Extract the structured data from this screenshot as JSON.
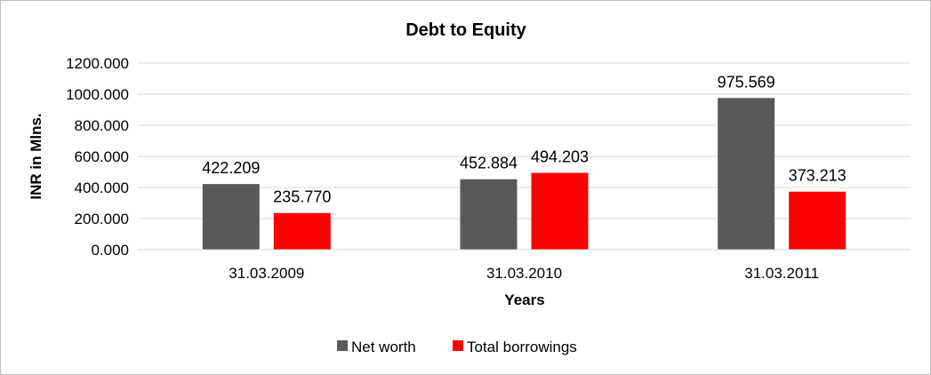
{
  "chart_data": {
    "type": "bar",
    "title": "Debt to Equity",
    "xlabel": "Years",
    "ylabel": "INR in Mlns.",
    "categories": [
      "31.03.2009",
      "31.03.2010",
      "31.03.2011"
    ],
    "series": [
      {
        "name": "Net worth",
        "values": [
          422.209,
          452.884,
          975.569
        ],
        "labels": [
          "422.209",
          "452.884",
          "975.569"
        ],
        "color": "#595959"
      },
      {
        "name": "Total borrowings",
        "values": [
          235.77,
          494.203,
          373.213
        ],
        "labels": [
          "235.770",
          "494.203",
          "373.213"
        ],
        "color": "#ff0000"
      }
    ],
    "ylim": [
      0,
      1200
    ],
    "yticks": [
      "0.000",
      "200.000",
      "400.000",
      "600.000",
      "800.000",
      "1000.000",
      "1200.000"
    ],
    "grid": true,
    "legend_position": "bottom"
  }
}
